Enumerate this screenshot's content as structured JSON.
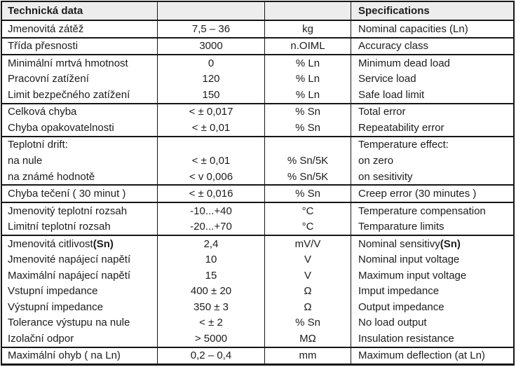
{
  "table": {
    "header": {
      "czech": "Technická data",
      "english": "Specifications"
    },
    "colors": {
      "border": "#161616",
      "header_background": "#ededed",
      "text": "#1c1c1c",
      "page_background": "#ffffff"
    },
    "groups": [
      {
        "rows": [
          {
            "cs": "Jmenovitá zátěž",
            "value": "7,5 – 36",
            "unit": "kg",
            "en": "Nominal capacities (Ln)"
          }
        ]
      },
      {
        "rows": [
          {
            "cs": "Třída přesnosti",
            "value": "3000",
            "unit": "n.OIML",
            "en": "Accuracy class"
          }
        ]
      },
      {
        "rows": [
          {
            "cs": "Minimální mrtvá hmotnost",
            "value": "0",
            "unit": "% Ln",
            "en": "Minimum dead load"
          },
          {
            "cs": "Pracovní zatížení",
            "value": "120",
            "unit": "% Ln",
            "en": "Service load"
          },
          {
            "cs": "Limit bezpečného zatížení",
            "value": "150",
            "unit": "% Ln",
            "en": "Safe load limit"
          }
        ]
      },
      {
        "rows": [
          {
            "cs": "Celková chyba",
            "value": "< ± 0,017",
            "unit": "% Sn",
            "en": "Total error"
          },
          {
            "cs": "Chyba opakovatelnosti",
            "value": "< ± 0,01",
            "unit": "% Sn",
            "en": "Repeatability error"
          }
        ]
      },
      {
        "rows": [
          {
            "cs": "Teplotní drift:",
            "value": "",
            "unit": "",
            "en": "Temperature effect:"
          },
          {
            "cs": "na nule",
            "value": "< ± 0,01",
            "unit": "% Sn/5K",
            "en": "on zero"
          },
          {
            "cs": "na známé hodnotě",
            "value": "< v 0,006",
            "unit": "% Sn/5K",
            "en": "on sesitivity"
          }
        ]
      },
      {
        "rows": [
          {
            "cs": "Chyba tečení ( 30 minut )",
            "value": "< ± 0,016",
            "unit": "% Sn",
            "en": "Creep error (30 minutes )"
          }
        ]
      },
      {
        "rows": [
          {
            "cs": "Jmenovitý teplotní rozsah",
            "value": "-10...+40",
            "unit": "°C",
            "en": "Temperature compensation"
          },
          {
            "cs": "Limitní teplotní rozsah",
            "value": "-20...+70",
            "unit": "°C",
            "en": "Temparature limits"
          }
        ]
      },
      {
        "rows": [
          {
            "cs": "Jmenovitá citlivost ",
            "cs_bold": "(Sn)",
            "value": "2,4",
            "unit": "mV/V",
            "en": "Nominal sensitivy ",
            "en_bold": "(Sn)"
          },
          {
            "cs": "Jmenovité napájecí napětí",
            "value": "10",
            "unit": "V",
            "en": "Nominal input voltage"
          },
          {
            "cs": "Maximální napájecí napětí",
            "value": "15",
            "unit": "V",
            "en": "Maximum input voltage"
          },
          {
            "cs": "Vstupní impedance",
            "value": "400 ± 20",
            "unit": "Ω",
            "en": "Imput impedance"
          },
          {
            "cs": "Výstupní impedance",
            "value": "350 ± 3",
            "unit": "Ω",
            "en": "Output impedance"
          },
          {
            "cs": "Tolerance výstupu na nule",
            "value": "< ± 2",
            "unit": "% Sn",
            "en": "No load output"
          },
          {
            "cs": "Izolační odpor",
            "value": "> 5000",
            "unit": "MΩ",
            "en": "Insulation resistance"
          }
        ]
      },
      {
        "rows": [
          {
            "cs": "Maximální ohyb ( na Ln)",
            "value": "0,2 – 0,4",
            "unit": "mm",
            "en": "Maximum deflection (at Ln)"
          }
        ]
      }
    ]
  }
}
